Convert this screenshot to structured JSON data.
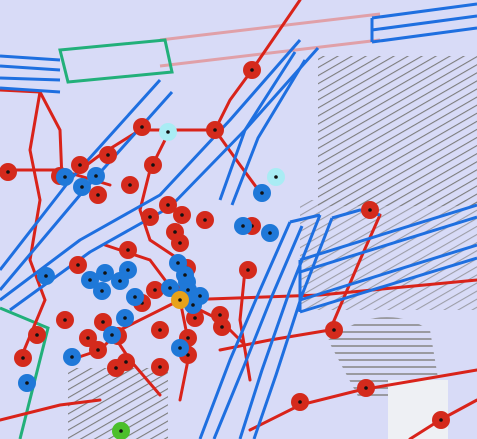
{
  "colors": {
    "background": "#d8dbf7",
    "pipe_blue": "#1e6fe0",
    "pipe_red": "#d9231a",
    "pipe_pink": "#e0a0a8",
    "green_outline": "#22b07a",
    "hatch": "#7d7d7d",
    "node_red": "#d42a1c",
    "node_blue": "#1f78d8",
    "node_cyan": "#a9ecf4",
    "node_orange": "#e8a21a",
    "node_green": "#4cbf2c",
    "white_patch": "#eef0f4"
  },
  "legend_counts": {
    "red_nodes": 44,
    "blue_nodes": 25,
    "cyan_nodes": 2,
    "orange_nodes": 1,
    "green_nodes": 1
  },
  "icons": {
    "node": "circle-node-icon"
  }
}
